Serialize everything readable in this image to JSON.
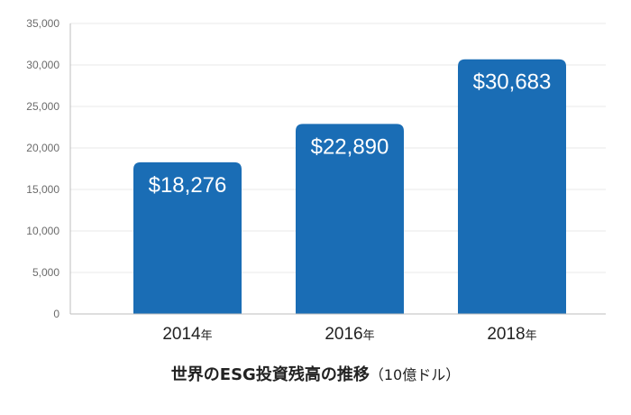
{
  "chart_data": {
    "type": "bar",
    "title": "世界のESG投資残高の推移",
    "title_unit": "（10億ドル）",
    "categories": [
      "2014年",
      "2016年",
      "2018年"
    ],
    "values": [
      18276,
      22890,
      30683
    ],
    "data_labels": [
      "$18,276",
      "$22,890",
      "$30,683"
    ],
    "ylim": [
      0,
      35000
    ],
    "yticks": [
      0,
      5000,
      10000,
      15000,
      20000,
      25000,
      30000,
      35000
    ],
    "ytick_labels": [
      "0",
      "5,000",
      "10,000",
      "15,000",
      "20,000",
      "25,000",
      "30,000",
      "35,000"
    ],
    "xlabel": "",
    "ylabel": "",
    "grid": true,
    "bar_color": "#1a6db5",
    "grid_color": "#e8e8e8",
    "axis_color": "#bdbdbd"
  }
}
